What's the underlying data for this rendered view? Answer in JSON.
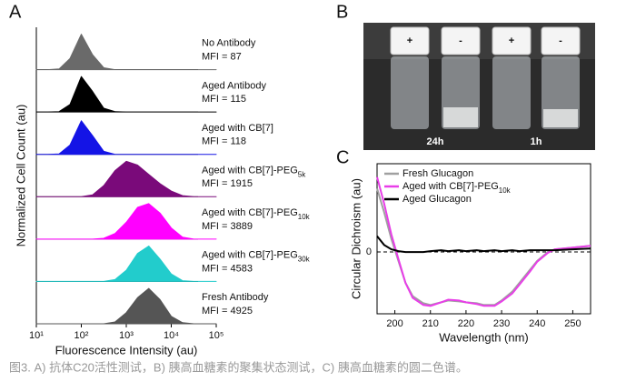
{
  "chart_data": [
    {
      "type": "ridge",
      "panel": "A",
      "xlabel": "Fluorescence Intensity (au)",
      "ylabel": "Normalized Cell Count (au)",
      "log_x": true,
      "xlim": [
        10,
        100000
      ],
      "xticks": [
        {
          "value": 10,
          "label": "10¹"
        },
        {
          "value": 100,
          "label": "10²"
        },
        {
          "value": 1000,
          "label": "10³"
        },
        {
          "value": 10000,
          "label": "10⁴"
        },
        {
          "value": 100000,
          "label": "10⁵"
        }
      ],
      "ylim": [
        0,
        1
      ],
      "x": [
        10,
        18,
        32,
        56,
        100,
        178,
        316,
        562,
        1000,
        1778,
        3162,
        5623,
        10000,
        17783,
        31623,
        56234,
        100000
      ],
      "series": [
        {
          "name": {
            "text": "No Antibody"
          },
          "mfi_label": "MFI = 87",
          "color": "#6a6a6a",
          "values": [
            0,
            0,
            0.02,
            0.3,
            0.95,
            0.4,
            0.05,
            0,
            0,
            0,
            0,
            0,
            0,
            0,
            0,
            0,
            0
          ]
        },
        {
          "name": {
            "text": "Aged Antibody"
          },
          "mfi_label": "MFI = 115",
          "color": "#000000",
          "values": [
            0,
            0,
            0.01,
            0.2,
            0.95,
            0.55,
            0.1,
            0.01,
            0,
            0,
            0,
            0,
            0,
            0,
            0,
            0,
            0
          ]
        },
        {
          "name": {
            "text": "Aged with CB[7]"
          },
          "mfi_label": "MFI = 118",
          "color": "#1414e6",
          "values": [
            0,
            0,
            0.01,
            0.25,
            0.9,
            0.5,
            0.08,
            0,
            0,
            0,
            0,
            0,
            0,
            0,
            0,
            0,
            0
          ]
        },
        {
          "name": {
            "text": "Aged with CB[7]-PEG",
            "sub": "5k"
          },
          "mfi_label": "MFI = 1915",
          "color": "#7a0a7a",
          "values": [
            0,
            0,
            0,
            0,
            0,
            0.05,
            0.3,
            0.7,
            0.95,
            0.85,
            0.6,
            0.35,
            0.15,
            0.03,
            0,
            0,
            0
          ]
        },
        {
          "name": {
            "text": "Aged with CB[7]-PEG",
            "sub": "10k"
          },
          "mfi_label": "MFI = 3889",
          "color": "#ff00ff",
          "values": [
            0,
            0,
            0,
            0,
            0,
            0,
            0.02,
            0.15,
            0.45,
            0.85,
            0.95,
            0.7,
            0.3,
            0.05,
            0,
            0,
            0
          ]
        },
        {
          "name": {
            "text": "Aged with CB[7]-PEG",
            "sub": "30k"
          },
          "mfi_label": "MFI = 4583",
          "color": "#22cccc",
          "values": [
            0,
            0,
            0,
            0,
            0,
            0,
            0,
            0.05,
            0.3,
            0.75,
            0.95,
            0.6,
            0.2,
            0.02,
            0,
            0,
            0
          ]
        },
        {
          "name": {
            "text": "Fresh Antibody"
          },
          "mfi_label": "MFI = 4925",
          "color": "#555555",
          "values": [
            0,
            0,
            0,
            0,
            0,
            0,
            0,
            0.05,
            0.3,
            0.7,
            0.95,
            0.65,
            0.2,
            0.03,
            0,
            0,
            0
          ]
        }
      ]
    },
    {
      "type": "line",
      "panel": "C",
      "xlabel": "Wavelength (nm)",
      "ylabel": "Circular Dichroism (au)",
      "xlim": [
        195,
        255
      ],
      "xticks": [
        200,
        210,
        220,
        230,
        240,
        250
      ],
      "ylim": [
        -0.7,
        1
      ],
      "yticks": [
        0
      ],
      "x": [
        195,
        197,
        199,
        201,
        203,
        205,
        208,
        210,
        213,
        215,
        218,
        220,
        223,
        225,
        228,
        230,
        233,
        235,
        238,
        240,
        243,
        245,
        250,
        255
      ],
      "series": [
        {
          "name": {
            "text": "Fresh Glucagon"
          },
          "color": "#a0a0a0",
          "values": [
            0.72,
            0.45,
            0.15,
            -0.1,
            -0.35,
            -0.5,
            -0.58,
            -0.6,
            -0.57,
            -0.55,
            -0.56,
            -0.57,
            -0.58,
            -0.6,
            -0.6,
            -0.55,
            -0.45,
            -0.35,
            -0.2,
            -0.1,
            0,
            0.03,
            0.05,
            0.07
          ]
        },
        {
          "name": {
            "text": "Aged with CB[7]-PEG",
            "sub": "10k"
          },
          "color": "#e83ee8",
          "values": [
            0.85,
            0.55,
            0.2,
            -0.08,
            -0.35,
            -0.52,
            -0.6,
            -0.61,
            -0.57,
            -0.54,
            -0.55,
            -0.57,
            -0.59,
            -0.61,
            -0.61,
            -0.56,
            -0.47,
            -0.37,
            -0.22,
            -0.11,
            -0.01,
            0.03,
            0.05,
            0.07
          ]
        },
        {
          "name": {
            "text": "Aged Glucagon"
          },
          "color": "#000000",
          "values": [
            0.18,
            0.08,
            0.03,
            0.01,
            0,
            0,
            0,
            0.01,
            0.02,
            0.01,
            0.02,
            0.01,
            0.02,
            0.01,
            0.02,
            0.01,
            0.02,
            0.01,
            0.02,
            0.02,
            0.02,
            0.02,
            0.03,
            0.04
          ]
        }
      ]
    }
  ],
  "photo": {
    "panel": "B",
    "caps": [
      "+",
      "-",
      "+",
      "-"
    ],
    "times": [
      "24h",
      "1h"
    ]
  },
  "caption": "图3. A) 抗体C20活性测试，B) 胰高血糖素的聚集状态测试，C) 胰高血糖素的圆二色谱。"
}
